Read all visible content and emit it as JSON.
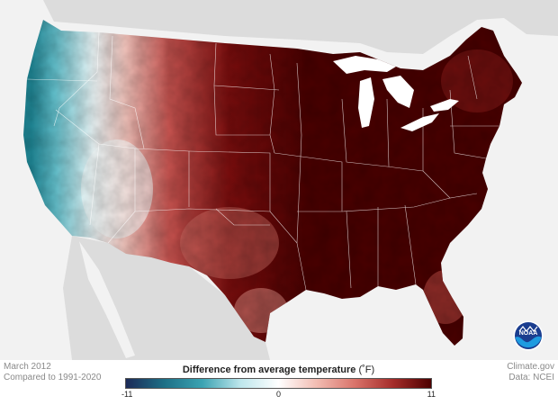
{
  "map": {
    "title": "Difference from average temperature",
    "unit": "(˚F)",
    "period": "March 2012",
    "baseline": "Compared to 1991-2020",
    "source": "Climate.gov",
    "data_credit": "Data: NCEI",
    "logo_label": "NOAA",
    "colors": {
      "ocean": "#f2f2f2",
      "land_outside": "#dcdcdc",
      "lakes": "#ffffff",
      "borders": "#ffffff"
    }
  },
  "legend": {
    "min_label": "-11",
    "mid_label": "0",
    "max_label": "11",
    "stops": [
      "#1c2a57",
      "#1d6f86",
      "#3ba3b2",
      "#bde6ec",
      "#ffffff",
      "#f2bcb2",
      "#d9736a",
      "#a52c2a",
      "#4d0000"
    ]
  }
}
